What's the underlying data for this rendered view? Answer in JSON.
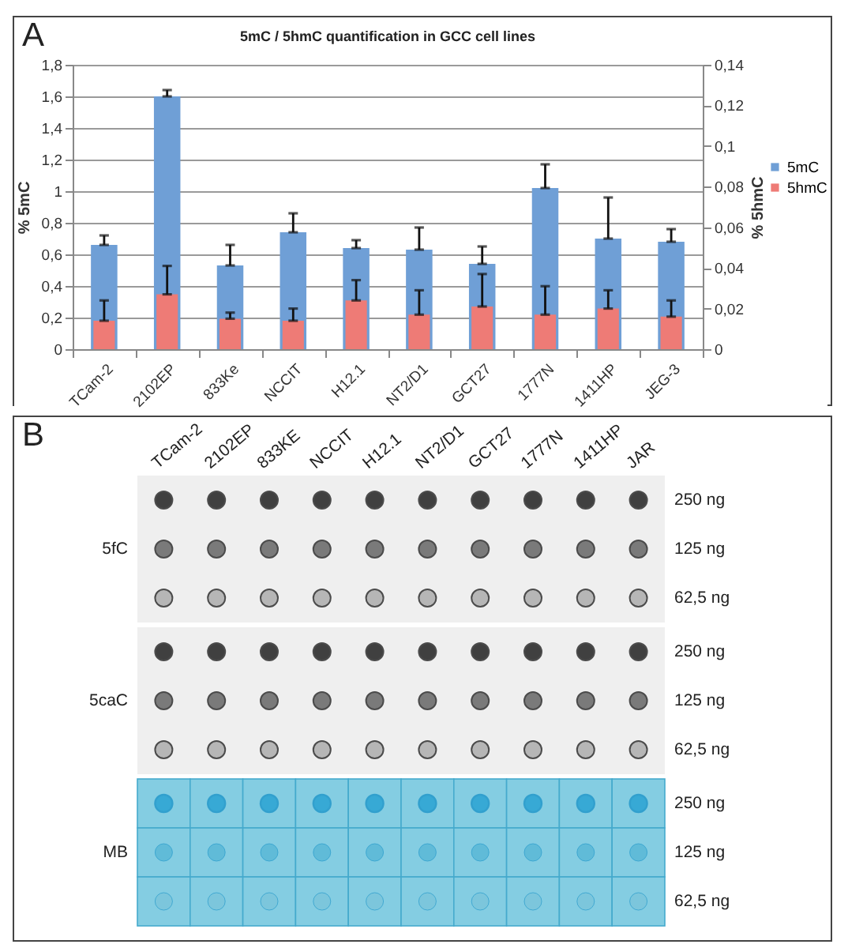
{
  "chart_data": [
    {
      "type": "bar",
      "title": "5mC / 5hmC quantification in GCC cell lines",
      "ylabel": "% 5mC",
      "y2label": "% 5hmC",
      "annotations": [
        "A"
      ],
      "categories": [
        "TCam-2",
        "2102EP",
        "833Ke",
        "NCCIT",
        "H12.1",
        "NT2/D1",
        "GCT27",
        "1777N",
        "1411HP",
        "JEG-3"
      ],
      "series": [
        {
          "name": "5mC",
          "color": "#6f9fd6",
          "values": [
            0.66,
            1.6,
            0.53,
            0.74,
            0.64,
            0.63,
            0.54,
            1.02,
            0.7,
            0.68
          ],
          "errors": [
            [
              0.66,
              0.72
            ],
            [
              1.6,
              1.64
            ],
            [
              0.53,
              0.66
            ],
            [
              0.74,
              0.86
            ],
            [
              0.64,
              0.69
            ],
            [
              0.63,
              0.77
            ],
            [
              0.54,
              0.65
            ],
            [
              1.02,
              1.17
            ],
            [
              0.7,
              0.96
            ],
            [
              0.68,
              0.76
            ]
          ]
        },
        {
          "name": "5hmC",
          "color": "#ee7b76",
          "axis": "y2",
          "values": [
            0.014,
            0.027,
            0.015,
            0.014,
            0.024,
            0.017,
            0.021,
            0.017,
            0.02,
            0.016
          ],
          "errors": [
            [
              0.014,
              0.024
            ],
            [
              0.027,
              0.041
            ],
            [
              0.015,
              0.018
            ],
            [
              0.014,
              0.02
            ],
            [
              0.024,
              0.034
            ],
            [
              0.017,
              0.029
            ],
            [
              0.021,
              0.037
            ],
            [
              0.017,
              0.031
            ],
            [
              0.02,
              0.029
            ],
            [
              0.016,
              0.024
            ]
          ]
        }
      ],
      "ylim": [
        0,
        1.8
      ],
      "yticks": [
        0,
        {
          "value": 0.2,
          "label": "0,2"
        },
        {
          "value": 0.4,
          "label": "0,4"
        },
        {
          "value": 0.6,
          "label": "0,6"
        },
        {
          "value": 0.8,
          "label": "0,8"
        },
        1,
        {
          "value": 1.2,
          "label": "1,2"
        },
        {
          "value": 1.4,
          "label": "1,4"
        },
        {
          "value": 1.6,
          "label": "1,6"
        },
        {
          "value": 1.8,
          "label": "1,8"
        }
      ],
      "y2lim": [
        0,
        0.14
      ],
      "y2ticks": [
        0,
        {
          "value": 0.02,
          "label": "0,02"
        },
        {
          "value": 0.04,
          "label": "0,04"
        },
        {
          "value": 0.06,
          "label": "0,06"
        },
        {
          "value": 0.08,
          "label": "0,08"
        },
        {
          "value": 0.1,
          "label": "0,1"
        },
        {
          "value": 0.12,
          "label": "0,12"
        },
        {
          "value": 0.14,
          "label": "0,14"
        }
      ],
      "grid": "y",
      "legend": "right"
    },
    {
      "type": "other",
      "annotations": [
        "B"
      ],
      "categories": [
        "TCam-2",
        "2102EP",
        "833KE",
        "NCCIT",
        "H12.1",
        "NT2/D1",
        "GCT27",
        "1777N",
        "1411HP",
        "JAR"
      ],
      "y_categories": [
        null,
        "5fC",
        null,
        null,
        "5caC",
        null,
        null,
        "MB",
        null
      ],
      "y2_categories": [
        "250 ng",
        "125 ng",
        "62,5 ng",
        "250 ng",
        "125 ng",
        "62,5 ng",
        "250 ng",
        "125 ng",
        "62,5 ng"
      ]
    }
  ]
}
